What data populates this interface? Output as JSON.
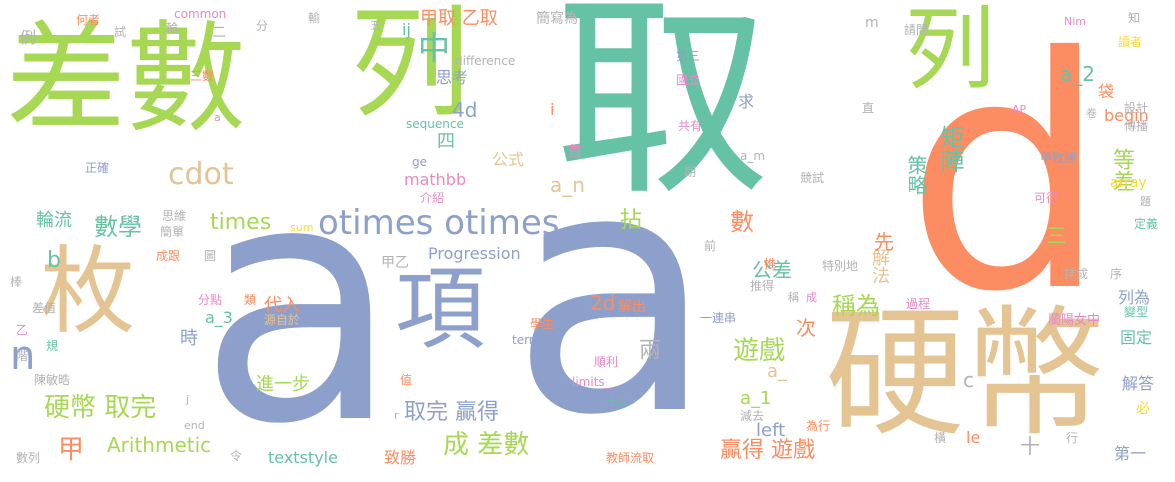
{
  "palette": {
    "green": "#a6d854",
    "teal": "#66c2a5",
    "blue": "#8da0cb",
    "orange": "#fc8d62",
    "tan": "#e5c494",
    "pink": "#e78ac3",
    "yellow": "#ffd92f",
    "gray": "#b3b3b3"
  },
  "words": [
    {
      "text": "差數",
      "color": "green",
      "weight": 100
    },
    {
      "text": "列",
      "color": "green",
      "weight": 95
    },
    {
      "text": "取",
      "color": "teal",
      "weight": 100
    },
    {
      "text": "d",
      "color": "orange",
      "weight": 100
    },
    {
      "text": "a",
      "color": "blue",
      "weight": 100
    },
    {
      "text": "a",
      "color": "blue",
      "weight": 100
    },
    {
      "text": "硬幣",
      "color": "tan",
      "weight": 80
    },
    {
      "text": "枚",
      "color": "tan",
      "weight": 70
    },
    {
      "text": "項",
      "color": "blue",
      "weight": 65
    },
    {
      "text": "列",
      "color": "green",
      "weight": 60
    },
    {
      "text": "otimes otimes",
      "color": "blue",
      "weight": 30
    },
    {
      "text": "中",
      "color": "teal",
      "weight": 20
    },
    {
      "text": "n",
      "color": "blue",
      "weight": 28
    },
    {
      "text": "cdot",
      "color": "tan",
      "weight": 18
    },
    {
      "text": "甲取 乙取",
      "color": "orange",
      "weight": 15
    },
    {
      "text": "簡寫為",
      "color": "gray",
      "weight": 10
    },
    {
      "text": "a_2",
      "color": "teal",
      "weight": 14
    },
    {
      "text": "m",
      "color": "gray",
      "weight": 10
    },
    {
      "text": "數學",
      "color": "teal",
      "weight": 15
    },
    {
      "text": "times",
      "color": "green",
      "weight": 15
    },
    {
      "text": "輪流",
      "color": "teal",
      "weight": 12
    },
    {
      "text": "b",
      "color": "teal",
      "weight": 14
    },
    {
      "text": "硬幣 取完",
      "color": "green",
      "weight": 16
    },
    {
      "text": "甲",
      "color": "orange",
      "weight": 16
    },
    {
      "text": "Arithmetic",
      "color": "green",
      "weight": 14
    },
    {
      "text": "取完 贏得",
      "color": "blue",
      "weight": 15
    },
    {
      "text": "成 差數",
      "color": "green",
      "weight": 18
    },
    {
      "text": "遊戲",
      "color": "green",
      "weight": 16
    },
    {
      "text": "贏得 遊戲",
      "color": "orange",
      "weight": 16
    },
    {
      "text": "公差",
      "color": "teal",
      "weight": 13
    },
    {
      "text": "稱為",
      "color": "green",
      "weight": 16
    },
    {
      "text": "矩陣",
      "color": "teal",
      "weight": 15
    },
    {
      "text": "策略",
      "color": "teal",
      "weight": 14
    },
    {
      "text": "等差",
      "color": "green",
      "weight": 15
    },
    {
      "text": "解法",
      "color": "tan",
      "weight": 14
    },
    {
      "text": "數",
      "color": "orange",
      "weight": 16
    },
    {
      "text": "先",
      "color": "orange",
      "weight": 14
    },
    {
      "text": "拈",
      "color": "green",
      "weight": 14
    },
    {
      "text": "四",
      "color": "teal",
      "weight": 12
    },
    {
      "text": "4d",
      "color": "blue",
      "weight": 14
    },
    {
      "text": "思考",
      "color": "blue",
      "weight": 11
    },
    {
      "text": "首",
      "color": "pink",
      "weight": 9
    },
    {
      "text": "a_n",
      "color": "tan",
      "weight": 14
    },
    {
      "text": "公式",
      "color": "tan",
      "weight": 11
    },
    {
      "text": "mathbb",
      "color": "pink",
      "weight": 10
    },
    {
      "text": "Progression",
      "color": "blue",
      "weight": 12
    },
    {
      "text": "2d",
      "color": "orange",
      "weight": 14
    },
    {
      "text": "解出",
      "color": "orange",
      "weight": 10
    },
    {
      "text": "甲乙",
      "color": "gray",
      "weight": 10
    },
    {
      "text": "進一步",
      "color": "green",
      "weight": 12
    },
    {
      "text": "代入",
      "color": "orange",
      "weight": 12
    },
    {
      "text": "a_3",
      "color": "teal",
      "weight": 12
    },
    {
      "text": "時",
      "color": "blue",
      "weight": 12
    },
    {
      "text": "textstyle",
      "color": "teal",
      "weight": 11
    },
    {
      "text": "致勝",
      "color": "orange",
      "weight": 11
    },
    {
      "text": "兩",
      "color": "gray",
      "weight": 14
    },
    {
      "text": "次",
      "color": "orange",
      "weight": 14
    },
    {
      "text": "a_",
      "color": "tan",
      "weight": 12
    },
    {
      "text": "a_1",
      "color": "green",
      "weight": 12
    },
    {
      "text": "left",
      "color": "blue",
      "weight": 12
    },
    {
      "text": "c",
      "color": "gray",
      "weight": 12
    },
    {
      "text": "le",
      "color": "orange",
      "weight": 10
    },
    {
      "text": "十",
      "color": "gray",
      "weight": 12
    },
    {
      "text": "第一",
      "color": "blue",
      "weight": 12
    },
    {
      "text": "必",
      "color": "yellow",
      "weight": 10
    },
    {
      "text": "解答",
      "color": "blue",
      "weight": 11
    },
    {
      "text": "列為",
      "color": "blue",
      "weight": 11
    },
    {
      "text": "固定",
      "color": "teal",
      "weight": 11
    },
    {
      "text": "三",
      "color": "green",
      "weight": 14
    },
    {
      "text": "蘭陽女中",
      "color": "pink",
      "weight": 9
    },
    {
      "text": "array",
      "color": "yellow",
      "weight": 10
    },
    {
      "text": "begin",
      "color": "orange",
      "weight": 10
    },
    {
      "text": "袋",
      "color": "orange",
      "weight": 10
    },
    {
      "text": "讀者",
      "color": "yellow",
      "weight": 8
    },
    {
      "text": "知",
      "color": "gray",
      "weight": 8
    },
    {
      "text": "Nim",
      "color": "pink",
      "weight": 8
    },
    {
      "text": "common",
      "color": "pink",
      "weight": 8
    },
    {
      "text": "何者",
      "color": "orange",
      "weight": 8
    },
    {
      "text": "例",
      "color": "gray",
      "weight": 10
    },
    {
      "text": "輪",
      "color": "gray",
      "weight": 8
    },
    {
      "text": "試",
      "color": "gray",
      "weight": 8
    },
    {
      "text": "二",
      "color": "gray",
      "weight": 9
    },
    {
      "text": "分",
      "color": "gray",
      "weight": 8
    },
    {
      "text": "輸",
      "color": "gray",
      "weight": 8
    },
    {
      "text": "五",
      "color": "gray",
      "weight": 8
    },
    {
      "text": "ij",
      "color": "teal",
      "weight": 10
    },
    {
      "text": "difference",
      "color": "gray",
      "weight": 9
    },
    {
      "text": "sequence",
      "color": "teal",
      "weight": 9
    },
    {
      "text": "ge",
      "color": "blue",
      "weight": 8
    },
    {
      "text": "i",
      "color": "orange",
      "weight": 10
    },
    {
      "text": "第三",
      "color": "blue",
      "weight": 8
    },
    {
      "text": "國立",
      "color": "pink",
      "weight": 8
    },
    {
      "text": "請問",
      "color": "gray",
      "weight": 8
    },
    {
      "text": "傳播",
      "color": "gray",
      "weight": 8
    },
    {
      "text": "設計",
      "color": "gray",
      "weight": 8
    },
    {
      "text": "卷",
      "color": "gray",
      "weight": 7
    },
    {
      "text": "AP",
      "color": "pink",
      "weight": 7
    },
    {
      "text": "直",
      "color": "gray",
      "weight": 8
    },
    {
      "text": "求",
      "color": "blue",
      "weight": 10
    },
    {
      "text": "共有",
      "color": "pink",
      "weight": 8
    },
    {
      "text": "a_m",
      "color": "gray",
      "weight": 8
    },
    {
      "text": "甲致勝",
      "color": "blue",
      "weight": 8
    },
    {
      "text": "期",
      "color": "gray",
      "weight": 8
    },
    {
      "text": "競試",
      "color": "gray",
      "weight": 8
    },
    {
      "text": "可得",
      "color": "pink",
      "weight": 8
    },
    {
      "text": "題",
      "color": "gray",
      "weight": 7
    },
    {
      "text": "定義",
      "color": "teal",
      "weight": 8
    },
    {
      "text": "三數",
      "color": "orange",
      "weight": 8
    },
    {
      "text": "正確",
      "color": "blue",
      "weight": 8
    },
    {
      "text": "介紹",
      "color": "pink",
      "weight": 8
    },
    {
      "text": "思維",
      "color": "gray",
      "weight": 8
    },
    {
      "text": "簡單",
      "color": "gray",
      "weight": 8
    },
    {
      "text": "sum",
      "color": "yellow",
      "weight": 8
    },
    {
      "text": "成跟",
      "color": "orange",
      "weight": 8
    },
    {
      "text": "圖",
      "color": "gray",
      "weight": 8
    },
    {
      "text": "前",
      "color": "gray",
      "weight": 8
    },
    {
      "text": "推",
      "color": "orange",
      "weight": 8
    },
    {
      "text": "特別地",
      "color": "gray",
      "weight": 8
    },
    {
      "text": "排成",
      "color": "gray",
      "weight": 8
    },
    {
      "text": "棒",
      "color": "gray",
      "weight": 8
    },
    {
      "text": "序",
      "color": "gray",
      "weight": 8
    },
    {
      "text": "推得",
      "color": "gray",
      "weight": 8
    },
    {
      "text": "稱",
      "color": "gray",
      "weight": 7
    },
    {
      "text": "成",
      "color": "pink",
      "weight": 7
    },
    {
      "text": "過程",
      "color": "pink",
      "weight": 8
    },
    {
      "text": "變型",
      "color": "teal",
      "weight": 8
    },
    {
      "text": "差值",
      "color": "gray",
      "weight": 8
    },
    {
      "text": "分點",
      "color": "pink",
      "weight": 8
    },
    {
      "text": "類",
      "color": "orange",
      "weight": 8
    },
    {
      "text": "源自於",
      "color": "tan",
      "weight": 8
    },
    {
      "text": "一連串",
      "color": "blue",
      "weight": 8
    },
    {
      "text": "乙",
      "color": "pink",
      "weight": 7
    },
    {
      "text": "規",
      "color": "teal",
      "weight": 7
    },
    {
      "text": "學生",
      "color": "orange",
      "weight": 8
    },
    {
      "text": "term",
      "color": "blue",
      "weight": 8
    },
    {
      "text": "階",
      "color": "gray",
      "weight": 7
    },
    {
      "text": "陳敏晧",
      "color": "gray",
      "weight": 8
    },
    {
      "text": "值",
      "color": "orange",
      "weight": 7
    },
    {
      "text": "順利",
      "color": "pink",
      "weight": 8
    },
    {
      "text": "limits_",
      "color": "pink",
      "weight": 8
    },
    {
      "text": "十二",
      "color": "teal",
      "weight": 7
    },
    {
      "text": "j",
      "color": "gray",
      "weight": 7
    },
    {
      "text": "r",
      "color": "gray",
      "weight": 7
    },
    {
      "text": "end",
      "color": "gray",
      "weight": 7
    },
    {
      "text": "令",
      "color": "gray",
      "weight": 7
    },
    {
      "text": "數列",
      "color": "gray",
      "weight": 8
    },
    {
      "text": "減去",
      "color": "gray",
      "weight": 8
    },
    {
      "text": "為行",
      "color": "orange",
      "weight": 8
    },
    {
      "text": "橫",
      "color": "gray",
      "weight": 7
    },
    {
      "text": "行",
      "color": "gray",
      "weight": 7
    },
    {
      "text": "教師流取",
      "color": "orange",
      "weight": 8
    },
    {
      "text": "a",
      "color": "pink",
      "weight": 7
    }
  ]
}
